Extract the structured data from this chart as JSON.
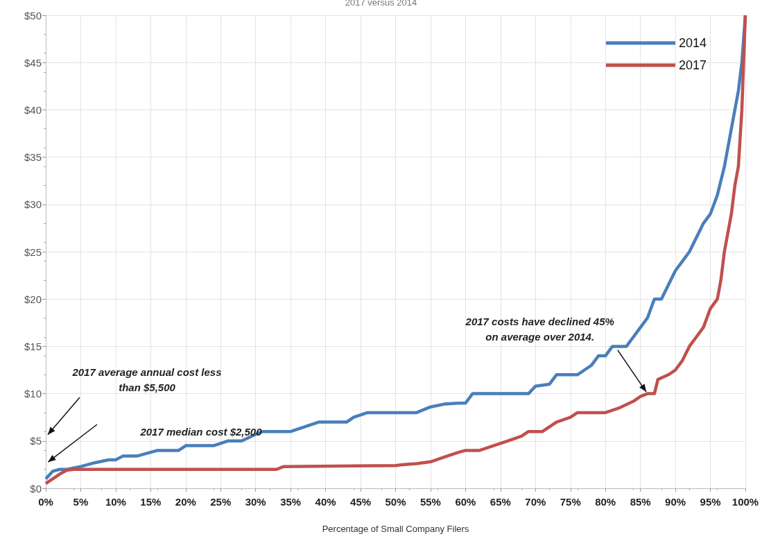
{
  "chart_data": {
    "type": "line",
    "title": "2017 versus 2014",
    "xlabel": "Percentage of Small Company Filers",
    "xlim": [
      0,
      100
    ],
    "xticks": [
      {
        "value": 0,
        "label": "0%"
      },
      {
        "value": 5,
        "label": "5%"
      },
      {
        "value": 10,
        "label": "10%"
      },
      {
        "value": 15,
        "label": "15%"
      },
      {
        "value": 20,
        "label": "20%"
      },
      {
        "value": 25,
        "label": "25%"
      },
      {
        "value": 30,
        "label": "30%"
      },
      {
        "value": 35,
        "label": "35%"
      },
      {
        "value": 40,
        "label": "40%"
      },
      {
        "value": 45,
        "label": "45%"
      },
      {
        "value": 50,
        "label": "50%"
      },
      {
        "value": 55,
        "label": "55%"
      },
      {
        "value": 60,
        "label": "60%"
      },
      {
        "value": 65,
        "label": "65%"
      },
      {
        "value": 70,
        "label": "70%"
      },
      {
        "value": 75,
        "label": "75%"
      },
      {
        "value": 80,
        "label": "80%"
      },
      {
        "value": 85,
        "label": "85%"
      },
      {
        "value": 90,
        "label": "90%"
      },
      {
        "value": 95,
        "label": "95%"
      },
      {
        "value": 100,
        "label": "100%"
      }
    ],
    "ylim": [
      0,
      50
    ],
    "yticks": [
      {
        "value": 0,
        "label": "$0"
      },
      {
        "value": 5,
        "label": "$5"
      },
      {
        "value": 10,
        "label": "$10"
      },
      {
        "value": 15,
        "label": "$15"
      },
      {
        "value": 20,
        "label": "$20"
      },
      {
        "value": 25,
        "label": "$25"
      },
      {
        "value": 30,
        "label": "$30"
      },
      {
        "value": 35,
        "label": "$35"
      },
      {
        "value": 40,
        "label": "$40"
      },
      {
        "value": 45,
        "label": "$45"
      },
      {
        "value": 50,
        "label": "$50"
      }
    ],
    "grid": true,
    "legend": "top right",
    "marker": "none",
    "line_style": "solid",
    "series": [
      {
        "name": "2014",
        "color": "#4a7ebb",
        "x": [
          0,
          1,
          2,
          3,
          5,
          7,
          9,
          10,
          11,
          13,
          15,
          16,
          19,
          20,
          24,
          26,
          28,
          30,
          31,
          35,
          37,
          39,
          43,
          44,
          46,
          53,
          55,
          57,
          59,
          60,
          61,
          69,
          70,
          72,
          73,
          76,
          77,
          78,
          79,
          80,
          81,
          83,
          84,
          85,
          86,
          87,
          88,
          89,
          90,
          91,
          92,
          93,
          94,
          95,
          96,
          97,
          97.5,
          98,
          98.5,
          99,
          99.5,
          100
        ],
        "values": [
          1.0,
          1.8,
          2.0,
          2.0,
          2.3,
          2.7,
          3.0,
          3.0,
          3.4,
          3.4,
          3.8,
          4.0,
          4.0,
          4.5,
          4.5,
          5.0,
          5.0,
          5.7,
          6.0,
          6.0,
          6.5,
          7.0,
          7.0,
          7.5,
          8.0,
          8.0,
          8.6,
          8.9,
          9.0,
          9.0,
          10.0,
          10.0,
          10.8,
          11.0,
          12.0,
          12.0,
          12.5,
          13.0,
          14.0,
          14.0,
          15.0,
          15.0,
          16.0,
          17.0,
          18.0,
          20.0,
          20.0,
          21.5,
          23.0,
          24.0,
          25.0,
          26.5,
          28.0,
          29.0,
          31.0,
          34,
          36,
          38,
          40,
          42,
          45,
          50
        ]
      },
      {
        "name": "2017",
        "color": "#c0504d",
        "x": [
          0,
          1,
          2,
          3,
          4,
          33,
          34,
          50,
          51,
          53,
          55,
          57,
          59,
          60,
          62,
          64,
          66,
          68,
          69,
          71,
          73,
          75,
          76,
          80,
          82,
          84,
          85,
          86,
          87,
          87.5,
          89,
          90,
          91,
          92,
          93,
          94,
          95,
          96,
          96.5,
          97,
          98,
          98.5,
          99,
          99.5,
          100
        ],
        "values": [
          0.5,
          1.0,
          1.5,
          1.9,
          2.0,
          2.0,
          2.3,
          2.4,
          2.5,
          2.6,
          2.8,
          3.3,
          3.8,
          4.0,
          4.0,
          4.5,
          5.0,
          5.5,
          6.0,
          6.0,
          7.0,
          7.5,
          8.0,
          8.0,
          8.5,
          9.2,
          9.7,
          10.0,
          10.0,
          11.5,
          12.0,
          12.5,
          13.5,
          15.0,
          16.0,
          17.0,
          19.0,
          20.0,
          22,
          25,
          29,
          32,
          34,
          40,
          50
        ]
      }
    ],
    "annotations": [
      "2017 average annual cost less than $5,500",
      "2017 median cost $2,500",
      {
        "text": "2017 costs have declined 45% on average over 2014.",
        "x": 86,
        "y": 10
      }
    ]
  }
}
